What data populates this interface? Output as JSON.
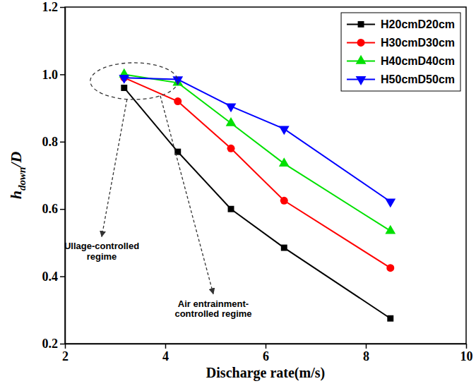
{
  "chart_data": {
    "type": "line",
    "x_label": "Discharge rate(m/s)",
    "y_label": [
      {
        "text": "h",
        "style": "italic"
      },
      {
        "text": "down",
        "style": "subscript"
      },
      {
        "text": "/D",
        "style": "italic"
      }
    ],
    "x": [
      3.18,
      4.25,
      5.31,
      6.37,
      8.49
    ],
    "series": [
      {
        "name": "H20cmD20cm",
        "color": "#000000",
        "marker": "square",
        "values": [
          0.96,
          0.77,
          0.6,
          0.485,
          0.275
        ]
      },
      {
        "name": "H30cmD30cm",
        "color": "#ff0000",
        "marker": "circle",
        "values": [
          0.99,
          0.92,
          0.78,
          0.625,
          0.425
        ]
      },
      {
        "name": "H40cmD40cm",
        "color": "#00e000",
        "marker": "triangle-up",
        "values": [
          1.0,
          0.975,
          0.855,
          0.735,
          0.535
        ]
      },
      {
        "name": "H50cmD50cm",
        "color": "#0000ff",
        "marker": "triangle-down",
        "values": [
          0.99,
          0.985,
          0.905,
          0.838,
          0.622
        ]
      }
    ],
    "xlim": [
      2,
      10
    ],
    "xticks": [
      2,
      4,
      6,
      8,
      10
    ],
    "ylim": [
      0.2,
      1.2
    ],
    "yticks": [
      0.2,
      0.4,
      0.6,
      0.8,
      {
        "value": 1.0,
        "label": "1.0"
      },
      1.2
    ],
    "annotations": [
      "Ullage-controlled regime",
      "Air entrainment-controlled regime"
    ],
    "legend": "upper right"
  }
}
